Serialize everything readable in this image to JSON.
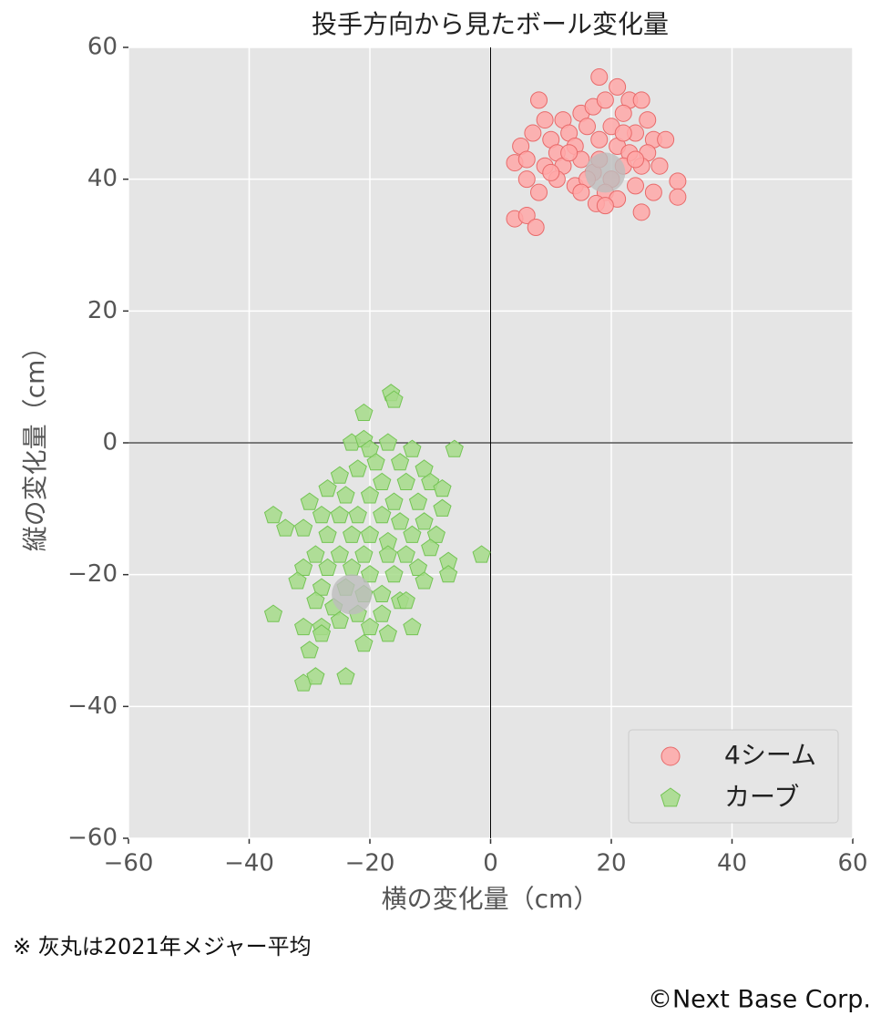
{
  "chart_data": {
    "type": "scatter",
    "title": "投手方向から見たボール変化量",
    "x_label": "横の変化量（cm）",
    "y_label": "縦の変化量（cm）",
    "note": "※ 灰丸は2021年メジャー平均",
    "credit": "©Next Base Corp.",
    "xlim": [
      -60,
      60
    ],
    "ylim": [
      -60,
      60
    ],
    "xticks": [
      {
        "value": -60,
        "label": "−60"
      },
      {
        "value": -40,
        "label": "−40"
      },
      {
        "value": -20,
        "label": "−20"
      },
      0,
      20,
      40,
      60
    ],
    "yticks": [
      {
        "value": -60,
        "label": "−60"
      },
      {
        "value": -40,
        "label": "−40"
      },
      {
        "value": -20,
        "label": "−20"
      },
      0,
      20,
      40,
      60
    ],
    "grid": true,
    "legend": "lower right",
    "series": [
      {
        "name": "4シーム",
        "color": "#ffa8a8",
        "edge_color": "#e86a6a",
        "marker": "circle",
        "x": [
          18,
          8,
          21,
          23,
          25,
          12,
          15,
          17,
          19,
          22,
          9,
          26,
          13,
          16,
          20,
          24,
          27,
          29,
          5,
          7,
          10,
          11,
          14,
          18,
          21,
          23,
          26,
          4,
          6,
          9,
          12,
          15,
          17,
          20,
          22,
          25,
          28,
          6,
          8,
          11,
          14,
          16,
          19,
          21,
          24,
          27,
          31,
          31,
          4,
          6,
          7.5,
          17.5,
          19,
          25,
          13,
          10,
          22,
          18,
          15,
          24
        ],
        "values": [
          55.5,
          52,
          54,
          52,
          52,
          49,
          50,
          51,
          52,
          50,
          49,
          49,
          47,
          48,
          48,
          47,
          46,
          46,
          45,
          47,
          46,
          44,
          45,
          46,
          45,
          44,
          44,
          42.5,
          43,
          42,
          42,
          43,
          41,
          40,
          42,
          42,
          42,
          40,
          38,
          40,
          39,
          40,
          38,
          37,
          39,
          38,
          39.7,
          37.3,
          34,
          34.5,
          32.7,
          36.3,
          36,
          35,
          44,
          41,
          47,
          43,
          38,
          43
        ]
      },
      {
        "name": "カーブ",
        "color": "#a6dc8a",
        "edge_color": "#74c454",
        "marker": "pentagon",
        "x": [
          -16.5,
          -16,
          -21,
          -6,
          -23,
          -21,
          -17,
          -13,
          -20,
          -25,
          -22,
          -19,
          -15,
          -11,
          -18,
          -14,
          -10,
          -27,
          -24,
          -20,
          -16,
          -12,
          -8,
          -36,
          -30,
          -28,
          -25,
          -22,
          -18,
          -15,
          -11,
          -8,
          -34,
          -31,
          -27,
          -23,
          -20,
          -17,
          -13,
          -9,
          -29,
          -25,
          -21,
          -17,
          -14,
          -10,
          -1.5,
          -31,
          -27,
          -23,
          -20,
          -16,
          -12,
          -7,
          -32,
          -28,
          -24,
          -21,
          -18,
          -15,
          -11,
          -7,
          -29,
          -26,
          -22,
          -18,
          -14,
          -36,
          -31,
          -28,
          -25,
          -20,
          -17,
          -13,
          -28,
          -30,
          -21,
          -31,
          -29,
          -24
        ],
        "values": [
          7.5,
          6.5,
          4.5,
          -1,
          0,
          0.5,
          0,
          -1,
          -1,
          -5,
          -4,
          -3,
          -3,
          -4,
          -6,
          -6,
          -6,
          -7,
          -8,
          -8,
          -9,
          -9,
          -7,
          -11,
          -9,
          -11,
          -11,
          -11,
          -11,
          -12,
          -12,
          -10,
          -13,
          -13,
          -14,
          -14,
          -14,
          -15,
          -14,
          -14,
          -17,
          -17,
          -17,
          -17,
          -17,
          -16,
          -17,
          -19,
          -19,
          -19,
          -20,
          -20,
          -19,
          -18,
          -21,
          -22,
          -22,
          -23,
          -23,
          -24,
          -21,
          -20,
          -24,
          -25,
          -26,
          -26,
          -24,
          -26,
          -28,
          -28,
          -27,
          -28,
          -29,
          -28,
          -29,
          -31.5,
          -30.5,
          -36.5,
          -35.5,
          -35.5
        ]
      }
    ],
    "reference_points": {
      "color": "#bdbdbd",
      "x": [
        19,
        -23
      ],
      "y": [
        41,
        -23
      ]
    }
  }
}
